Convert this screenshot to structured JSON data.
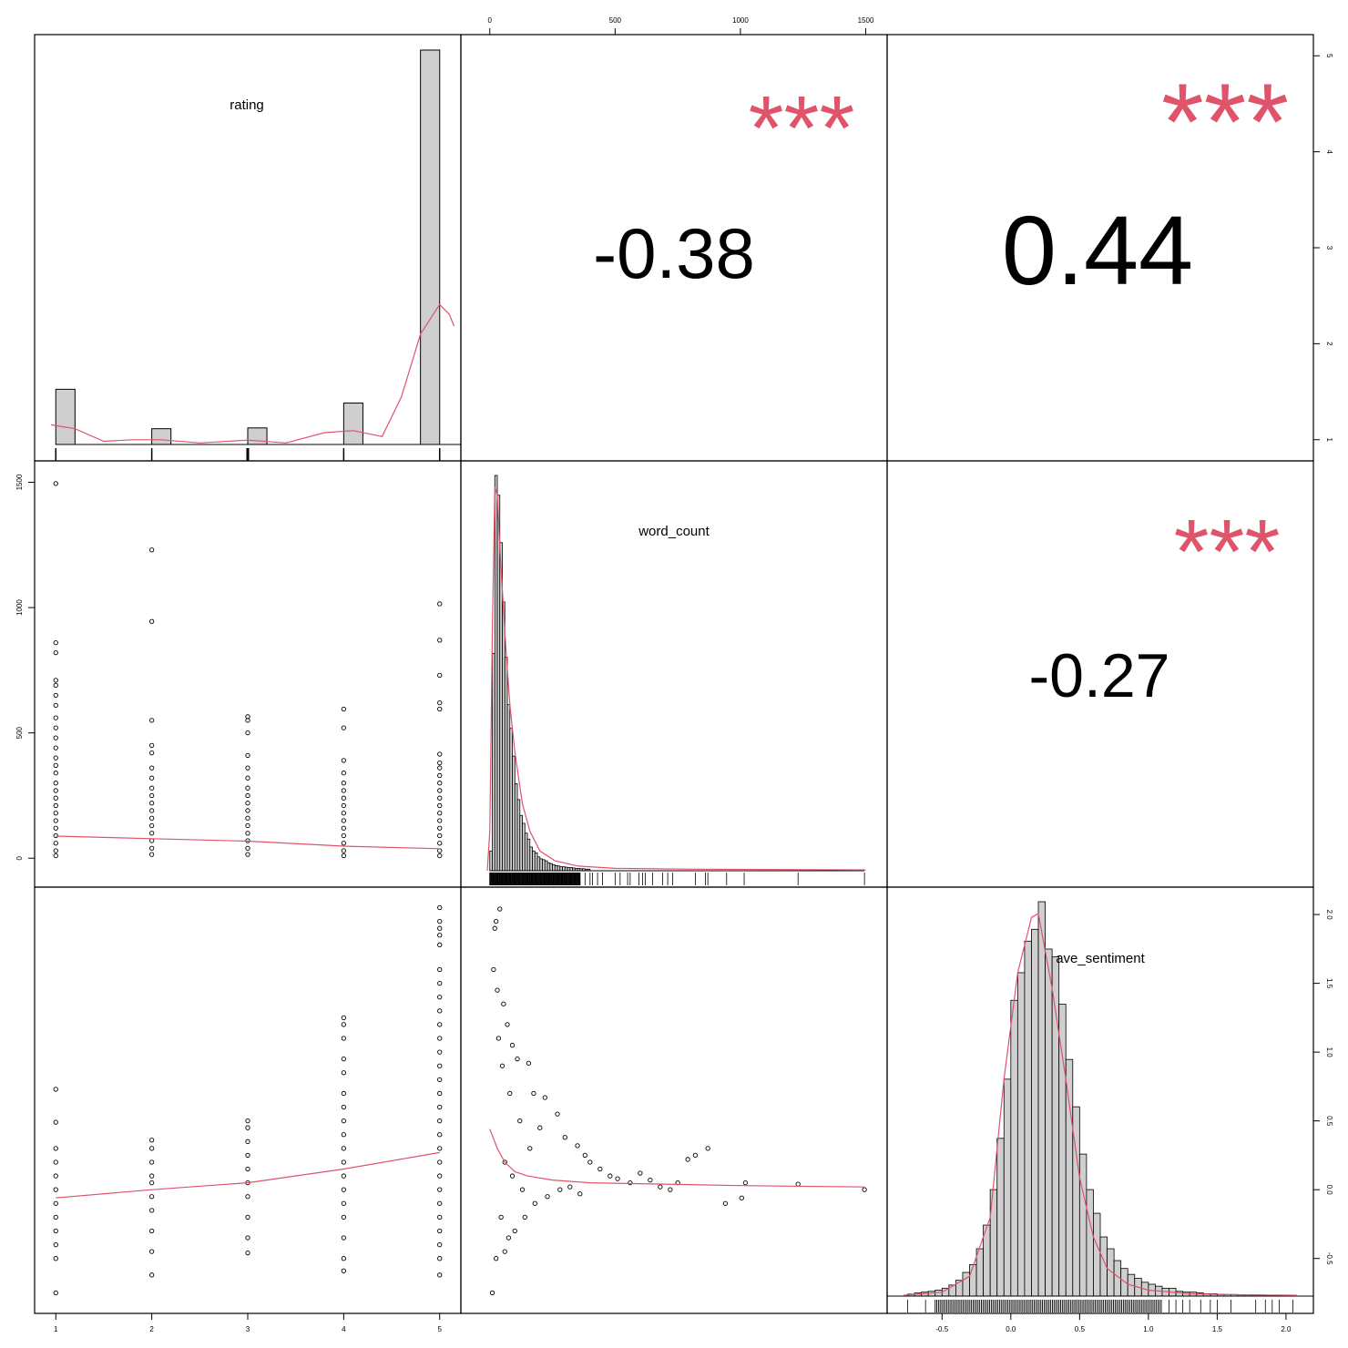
{
  "chart_data": {
    "type": "scatter",
    "variables": [
      "rating",
      "word_count",
      "ave_sentiment"
    ],
    "correlations": [
      {
        "pair": [
          "rating",
          "word_count"
        ],
        "value": "-0.38",
        "stars": "***"
      },
      {
        "pair": [
          "rating",
          "ave_sentiment"
        ],
        "value": "0.44",
        "stars": "***"
      },
      {
        "pair": [
          "word_count",
          "ave_sentiment"
        ],
        "value": "-0.27",
        "stars": "***"
      }
    ],
    "axes": {
      "rating": {
        "range": [
          0.95,
          5.05
        ],
        "ticks": [
          "1",
          "2",
          "3",
          "4",
          "5"
        ]
      },
      "word_count": {
        "range": [
          -50,
          1520
        ],
        "ticks": [
          "0",
          "500",
          "1000",
          "1500"
        ]
      },
      "ave_sentiment": {
        "range": [
          -0.78,
          2.08
        ],
        "ticks": [
          "-0.5",
          "0.0",
          "0.5",
          "1.0",
          "1.5",
          "2.0"
        ]
      }
    },
    "histograms": {
      "rating": {
        "bins": [
          [
            1.0,
            1.2,
            0.14
          ],
          [
            2.0,
            2.2,
            0.04
          ],
          [
            3.0,
            3.2,
            0.042
          ],
          [
            4.0,
            4.2,
            0.105
          ],
          [
            4.8,
            5.0,
            1.0
          ]
        ]
      },
      "word_count": {
        "bin_width": 10,
        "start": 0,
        "heights": [
          0.05,
          0.55,
          1.0,
          0.95,
          0.83,
          0.68,
          0.54,
          0.42,
          0.36,
          0.29,
          0.22,
          0.18,
          0.14,
          0.12,
          0.095,
          0.08,
          0.06,
          0.05,
          0.045,
          0.035,
          0.03,
          0.028,
          0.025,
          0.02,
          0.018,
          0.015,
          0.013,
          0.012,
          0.01,
          0.01,
          0.009,
          0.008,
          0.008,
          0.007,
          0.006,
          0.006,
          0.005,
          0.005,
          0.004,
          0.004
        ]
      },
      "ave_sentiment": {
        "bin_width": 0.05,
        "start": -0.75,
        "heights": [
          0.005,
          0.008,
          0.01,
          0.012,
          0.015,
          0.02,
          0.028,
          0.04,
          0.06,
          0.08,
          0.12,
          0.18,
          0.27,
          0.4,
          0.55,
          0.75,
          0.82,
          0.9,
          0.93,
          1.0,
          0.88,
          0.86,
          0.74,
          0.6,
          0.48,
          0.36,
          0.27,
          0.21,
          0.15,
          0.12,
          0.09,
          0.07,
          0.055,
          0.045,
          0.035,
          0.03,
          0.025,
          0.02,
          0.02,
          0.012,
          0.01,
          0.01,
          0.008,
          0.006,
          0.006,
          0.004,
          0.004,
          0.004,
          0.003,
          0.003,
          0.003,
          0.003,
          0.002,
          0.002,
          0.002,
          0.002
        ]
      }
    },
    "scatter_points": {
      "rating_vs_word_count": [
        [
          1,
          1495
        ],
        [
          1,
          860
        ],
        [
          1,
          820
        ],
        [
          1,
          710
        ],
        [
          1,
          690
        ],
        [
          1,
          650
        ],
        [
          1,
          610
        ],
        [
          1,
          560
        ],
        [
          1,
          520
        ],
        [
          1,
          480
        ],
        [
          1,
          440
        ],
        [
          1,
          400
        ],
        [
          1,
          370
        ],
        [
          1,
          340
        ],
        [
          1,
          300
        ],
        [
          1,
          270
        ],
        [
          1,
          240
        ],
        [
          1,
          210
        ],
        [
          1,
          180
        ],
        [
          1,
          150
        ],
        [
          1,
          120
        ],
        [
          1,
          90
        ],
        [
          1,
          60
        ],
        [
          1,
          30
        ],
        [
          1,
          10
        ],
        [
          2,
          1230
        ],
        [
          2,
          945
        ],
        [
          2,
          550
        ],
        [
          2,
          450
        ],
        [
          2,
          420
        ],
        [
          2,
          360
        ],
        [
          2,
          320
        ],
        [
          2,
          280
        ],
        [
          2,
          250
        ],
        [
          2,
          220
        ],
        [
          2,
          190
        ],
        [
          2,
          160
        ],
        [
          2,
          130
        ],
        [
          2,
          100
        ],
        [
          2,
          70
        ],
        [
          2,
          40
        ],
        [
          2,
          15
        ],
        [
          3,
          565
        ],
        [
          3,
          550
        ],
        [
          3,
          500
        ],
        [
          3,
          410
        ],
        [
          3,
          360
        ],
        [
          3,
          320
        ],
        [
          3,
          280
        ],
        [
          3,
          250
        ],
        [
          3,
          220
        ],
        [
          3,
          190
        ],
        [
          3,
          160
        ],
        [
          3,
          130
        ],
        [
          3,
          100
        ],
        [
          3,
          70
        ],
        [
          3,
          40
        ],
        [
          3,
          15
        ],
        [
          4,
          595
        ],
        [
          4,
          520
        ],
        [
          4,
          390
        ],
        [
          4,
          340
        ],
        [
          4,
          300
        ],
        [
          4,
          270
        ],
        [
          4,
          240
        ],
        [
          4,
          210
        ],
        [
          4,
          180
        ],
        [
          4,
          150
        ],
        [
          4,
          120
        ],
        [
          4,
          90
        ],
        [
          4,
          60
        ],
        [
          4,
          30
        ],
        [
          4,
          10
        ],
        [
          5,
          1015
        ],
        [
          5,
          870
        ],
        [
          5,
          730
        ],
        [
          5,
          620
        ],
        [
          5,
          595
        ],
        [
          5,
          415
        ],
        [
          5,
          380
        ],
        [
          5,
          360
        ],
        [
          5,
          330
        ],
        [
          5,
          300
        ],
        [
          5,
          270
        ],
        [
          5,
          240
        ],
        [
          5,
          210
        ],
        [
          5,
          180
        ],
        [
          5,
          150
        ],
        [
          5,
          120
        ],
        [
          5,
          90
        ],
        [
          5,
          60
        ],
        [
          5,
          30
        ],
        [
          5,
          10
        ]
      ],
      "rating_vs_ave_sentiment": [
        [
          1,
          0.73
        ],
        [
          1,
          0.49
        ],
        [
          1,
          0.3
        ],
        [
          1,
          0.2
        ],
        [
          1,
          0.1
        ],
        [
          1,
          0.0
        ],
        [
          1,
          -0.1
        ],
        [
          1,
          -0.2
        ],
        [
          1,
          -0.3
        ],
        [
          1,
          -0.4
        ],
        [
          1,
          -0.5
        ],
        [
          1,
          -0.75
        ],
        [
          2,
          0.36
        ],
        [
          2,
          0.3
        ],
        [
          2,
          0.2
        ],
        [
          2,
          0.1
        ],
        [
          2,
          0.05
        ],
        [
          2,
          -0.05
        ],
        [
          2,
          -0.15
        ],
        [
          2,
          -0.3
        ],
        [
          2,
          -0.45
        ],
        [
          2,
          -0.62
        ],
        [
          3,
          0.5
        ],
        [
          3,
          0.45
        ],
        [
          3,
          0.35
        ],
        [
          3,
          0.25
        ],
        [
          3,
          0.15
        ],
        [
          3,
          0.05
        ],
        [
          3,
          -0.05
        ],
        [
          3,
          -0.2
        ],
        [
          3,
          -0.35
        ],
        [
          3,
          -0.46
        ],
        [
          4,
          1.25
        ],
        [
          4,
          1.2
        ],
        [
          4,
          1.1
        ],
        [
          4,
          0.95
        ],
        [
          4,
          0.85
        ],
        [
          4,
          0.7
        ],
        [
          4,
          0.6
        ],
        [
          4,
          0.5
        ],
        [
          4,
          0.4
        ],
        [
          4,
          0.3
        ],
        [
          4,
          0.2
        ],
        [
          4,
          0.1
        ],
        [
          4,
          0.0
        ],
        [
          4,
          -0.1
        ],
        [
          4,
          -0.2
        ],
        [
          4,
          -0.35
        ],
        [
          4,
          -0.5
        ],
        [
          4,
          -0.59
        ],
        [
          5,
          2.05
        ],
        [
          5,
          1.95
        ],
        [
          5,
          1.9
        ],
        [
          5,
          1.85
        ],
        [
          5,
          1.78
        ],
        [
          5,
          1.6
        ],
        [
          5,
          1.5
        ],
        [
          5,
          1.4
        ],
        [
          5,
          1.3
        ],
        [
          5,
          1.2
        ],
        [
          5,
          1.1
        ],
        [
          5,
          1.0
        ],
        [
          5,
          0.9
        ],
        [
          5,
          0.8
        ],
        [
          5,
          0.7
        ],
        [
          5,
          0.6
        ],
        [
          5,
          0.5
        ],
        [
          5,
          0.4
        ],
        [
          5,
          0.3
        ],
        [
          5,
          0.2
        ],
        [
          5,
          0.1
        ],
        [
          5,
          0.0
        ],
        [
          5,
          -0.1
        ],
        [
          5,
          -0.2
        ],
        [
          5,
          -0.3
        ],
        [
          5,
          -0.4
        ],
        [
          5,
          -0.5
        ],
        [
          5,
          -0.62
        ]
      ],
      "word_count_vs_ave_sentiment": [
        [
          40,
          2.04
        ],
        [
          25,
          1.95
        ],
        [
          20,
          1.9
        ],
        [
          15,
          1.6
        ],
        [
          30,
          1.45
        ],
        [
          55,
          1.35
        ],
        [
          70,
          1.2
        ],
        [
          90,
          1.05
        ],
        [
          110,
          0.95
        ],
        [
          155,
          0.92
        ],
        [
          175,
          0.7
        ],
        [
          220,
          0.67
        ],
        [
          270,
          0.55
        ],
        [
          200,
          0.45
        ],
        [
          300,
          0.38
        ],
        [
          350,
          0.32
        ],
        [
          380,
          0.25
        ],
        [
          400,
          0.2
        ],
        [
          440,
          0.15
        ],
        [
          480,
          0.1
        ],
        [
          510,
          0.08
        ],
        [
          560,
          0.05
        ],
        [
          600,
          0.12
        ],
        [
          640,
          0.07
        ],
        [
          680,
          0.02
        ],
        [
          720,
          0.0
        ],
        [
          750,
          0.05
        ],
        [
          790,
          0.22
        ],
        [
          820,
          0.25
        ],
        [
          870,
          0.3
        ],
        [
          940,
          -0.1
        ],
        [
          1005,
          -0.06
        ],
        [
          1020,
          0.05
        ],
        [
          1230,
          0.04
        ],
        [
          1495,
          0.0
        ],
        [
          10,
          -0.75
        ],
        [
          60,
          -0.45
        ],
        [
          100,
          -0.3
        ],
        [
          140,
          -0.2
        ],
        [
          180,
          -0.1
        ],
        [
          230,
          -0.05
        ],
        [
          280,
          0.0
        ],
        [
          320,
          0.02
        ],
        [
          360,
          -0.03
        ],
        [
          160,
          0.3
        ],
        [
          120,
          0.5
        ],
        [
          80,
          0.7
        ],
        [
          50,
          0.9
        ],
        [
          35,
          1.1
        ],
        [
          60,
          0.2
        ],
        [
          90,
          0.1
        ],
        [
          130,
          0.0
        ],
        [
          45,
          -0.2
        ],
        [
          25,
          -0.5
        ],
        [
          75,
          -0.35
        ]
      ]
    },
    "fit_lines": {
      "rating_vs_word_count": [
        [
          1,
          88
        ],
        [
          2,
          78
        ],
        [
          3,
          68
        ],
        [
          4,
          48
        ],
        [
          5,
          38
        ]
      ],
      "rating_vs_ave_sentiment": [
        [
          1,
          -0.06
        ],
        [
          2,
          0.0
        ],
        [
          3,
          0.05
        ],
        [
          4,
          0.15
        ],
        [
          5,
          0.27
        ]
      ],
      "word_count_vs_ave_sentiment": [
        [
          0,
          0.44
        ],
        [
          30,
          0.3
        ],
        [
          60,
          0.2
        ],
        [
          100,
          0.13
        ],
        [
          150,
          0.1
        ],
        [
          250,
          0.07
        ],
        [
          400,
          0.05
        ],
        [
          700,
          0.04
        ],
        [
          1000,
          0.03
        ],
        [
          1495,
          0.02
        ]
      ]
    }
  }
}
